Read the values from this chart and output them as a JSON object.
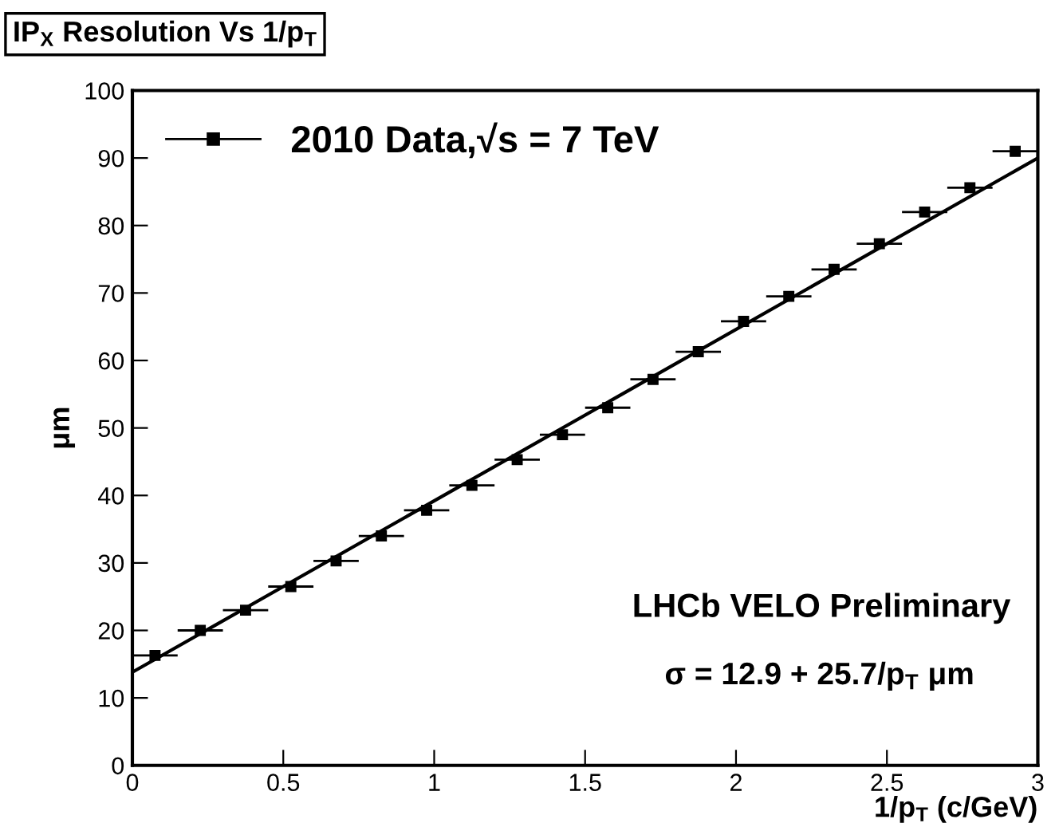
{
  "chart_data": {
    "type": "scatter",
    "title": "IP$_{X}$ Resolution Vs 1/p$_{T}$",
    "xlabel": "1/p$_{T}$ (c/GeV)",
    "ylabel": "μm",
    "xlim": [
      0,
      3
    ],
    "ylim": [
      0,
      100
    ],
    "xticks": [
      0,
      0.5,
      1,
      1.5,
      2,
      2.5,
      3
    ],
    "yticks": [
      0,
      10,
      20,
      30,
      40,
      50,
      60,
      70,
      80,
      90,
      100
    ],
    "grid": false,
    "legend": "top left",
    "marker": "square",
    "series": [
      {
        "name": "2010 Data,√s = 7 TeV",
        "color": "#000000",
        "x": [
          0.075,
          0.225,
          0.375,
          0.525,
          0.675,
          0.825,
          0.975,
          1.125,
          1.275,
          1.425,
          1.575,
          1.725,
          1.875,
          2.025,
          2.175,
          2.325,
          2.475,
          2.625,
          2.775,
          2.925
        ],
        "values": [
          16.3,
          20,
          23,
          26.5,
          30.3,
          34,
          37.8,
          41.5,
          45.3,
          49,
          53,
          57.2,
          61.3,
          65.8,
          69.5,
          73.5,
          77.3,
          82,
          85.6,
          91
        ],
        "xerrors": [
          0.075,
          0.075,
          0.075,
          0.075,
          0.075,
          0.075,
          0.075,
          0.075,
          0.075,
          0.075,
          0.075,
          0.075,
          0.075,
          0.075,
          0.075,
          0.075,
          0.075,
          0.075,
          0.075,
          0.075
        ]
      },
      {
        "type": "line",
        "color": "#000000",
        "x": [
          0,
          3
        ],
        "values": [
          13.8,
          90
        ],
        "marker": "none",
        "line_style": "solid"
      }
    ],
    "annotations": [
      "LHCb VELO Preliminary",
      "σ = 12.9 + 25.7/p$_{T}$ μm"
    ]
  }
}
